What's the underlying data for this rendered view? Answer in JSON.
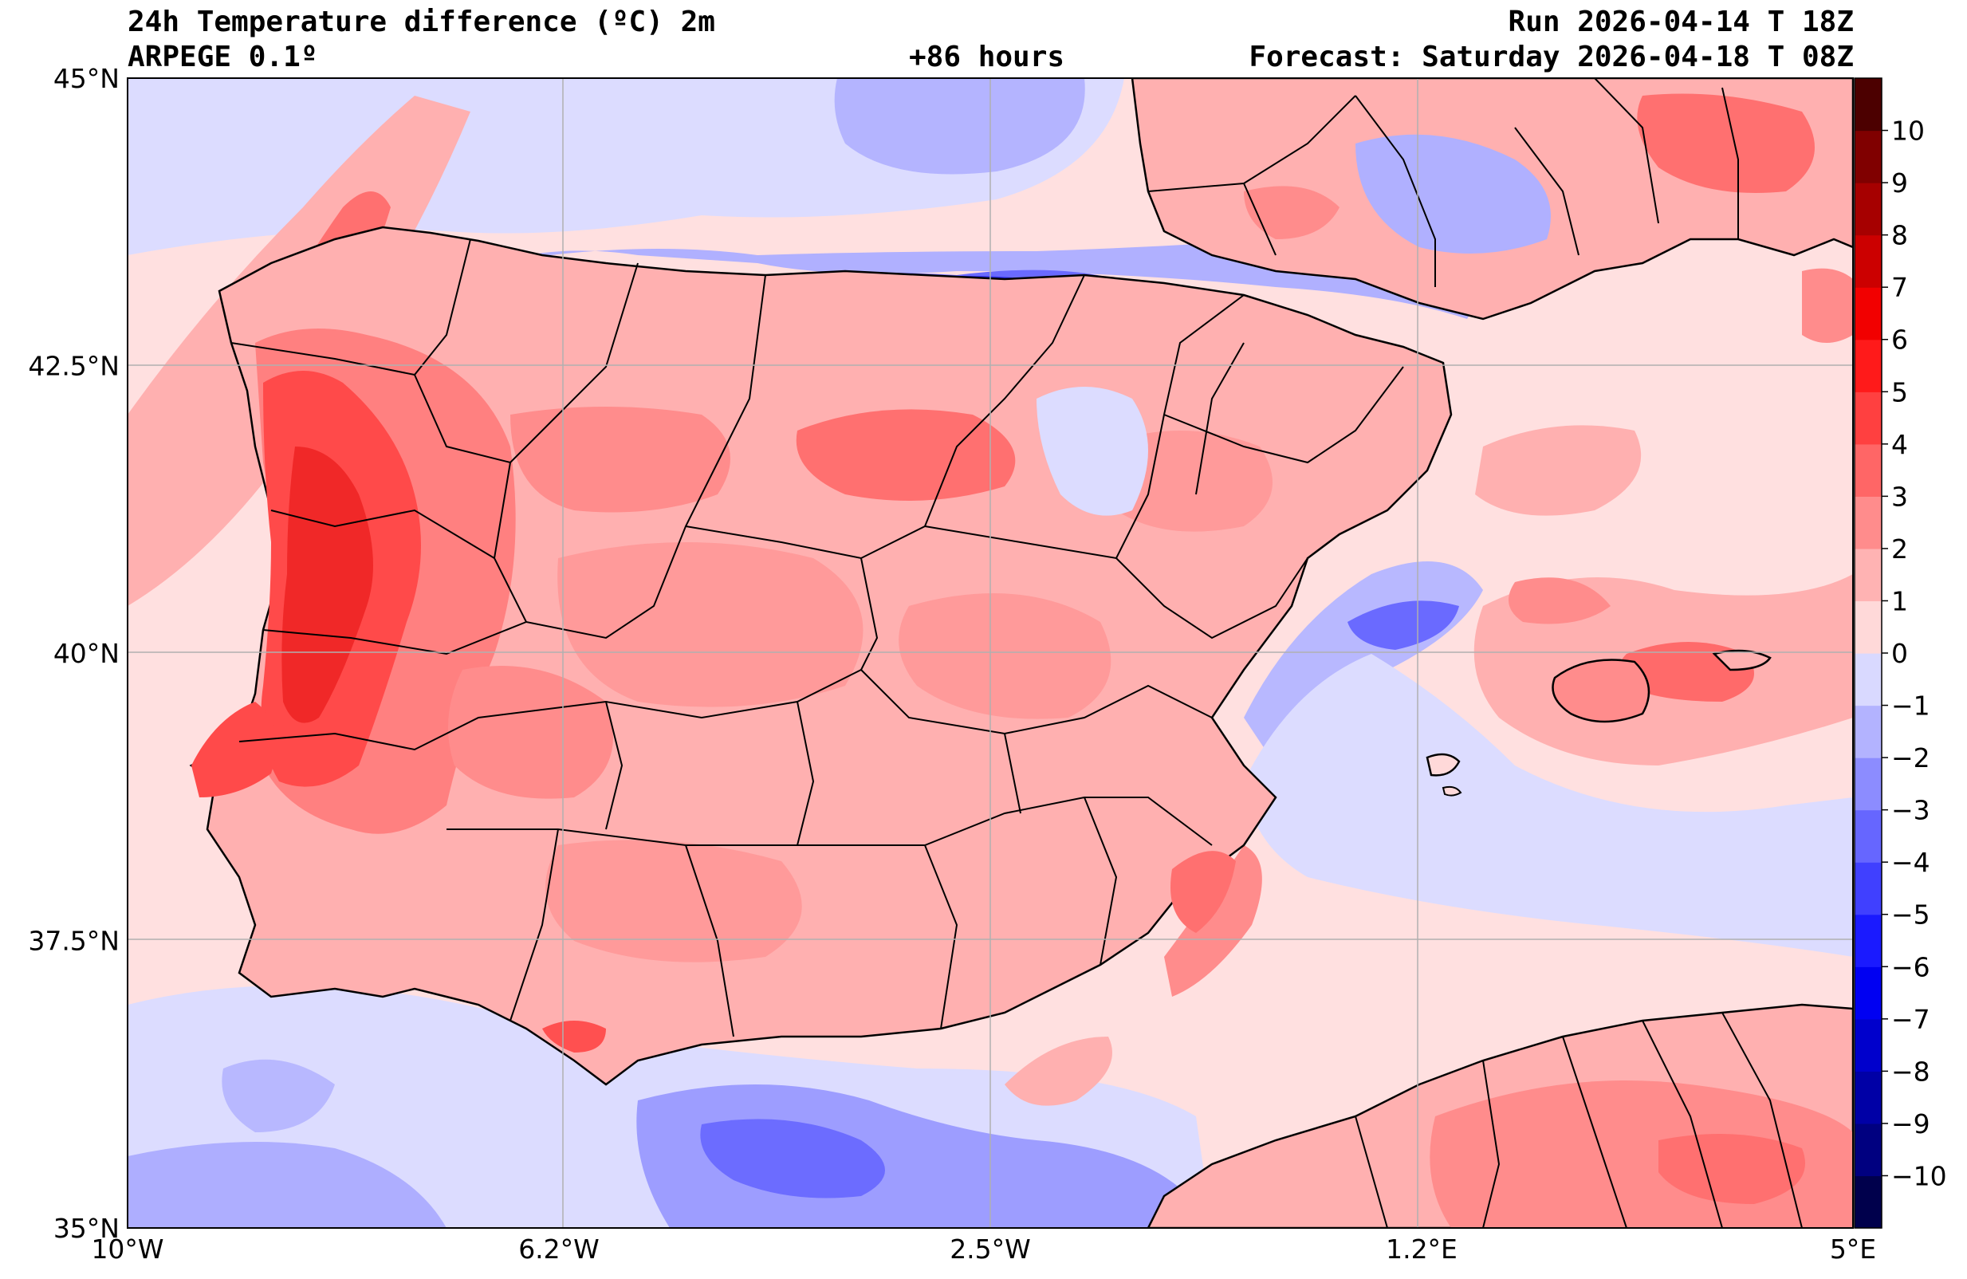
{
  "header": {
    "title": "24h Temperature difference (ºC) 2m",
    "model": "ARPEGE 0.1º",
    "lead_time": "+86 hours",
    "run": "Run 2026-04-14 T 18Z",
    "forecast": "Forecast: Saturday 2026-04-18 T 08Z"
  },
  "map": {
    "lon_range": [
      -10,
      5
    ],
    "lat_range": [
      35,
      45
    ],
    "lat_labels": [
      "45°N",
      "42.5°N",
      "40°N",
      "37.5°N",
      "35°N"
    ],
    "lat_values": [
      45,
      42.5,
      40,
      37.5,
      35
    ],
    "lon_labels": [
      "10°W",
      "6.2°W",
      "2.5°W",
      "1.2°E",
      "5°E"
    ],
    "lon_values": [
      -10,
      -6.25,
      -2.5,
      1.25,
      5
    ]
  },
  "colorbar": {
    "min": -11,
    "max": 11,
    "tick_labels": [
      "10",
      "9",
      "8",
      "7",
      "6",
      "5",
      "4",
      "3",
      "2",
      "1",
      "0",
      "−1",
      "−2",
      "−3",
      "−4",
      "−5",
      "−6",
      "−7",
      "−8",
      "−9",
      "−10"
    ],
    "tick_values": [
      10,
      9,
      8,
      7,
      6,
      5,
      4,
      3,
      2,
      1,
      0,
      -1,
      -2,
      -3,
      -4,
      -5,
      -6,
      -7,
      -8,
      -9,
      -10
    ],
    "colors": [
      "#00004c",
      "#000080",
      "#0000a6",
      "#0000cc",
      "#0000f2",
      "#1a1aff",
      "#4040ff",
      "#6666ff",
      "#8c8cff",
      "#b3b3ff",
      "#d9d9ff",
      "#ffd9d9",
      "#ffb3b3",
      "#ff8c8c",
      "#ff6666",
      "#ff4040",
      "#ff1a1a",
      "#f20000",
      "#cc0000",
      "#a60000",
      "#800000",
      "#4c0000"
    ]
  },
  "colors": {
    "sea_base": "#ffe0e0",
    "land_base": "#ffb0b0",
    "warm_mid": "#ff8c8c",
    "warm_strong": "#ff4a4a",
    "warm_peak": "#f22020",
    "cool_light": "#dcdcff",
    "cool_mid": "#a8a8ff",
    "cool_strong": "#5a5aff",
    "cool_peak": "#2828f0",
    "grid": "#b0b0b0",
    "coast": "#000000"
  }
}
